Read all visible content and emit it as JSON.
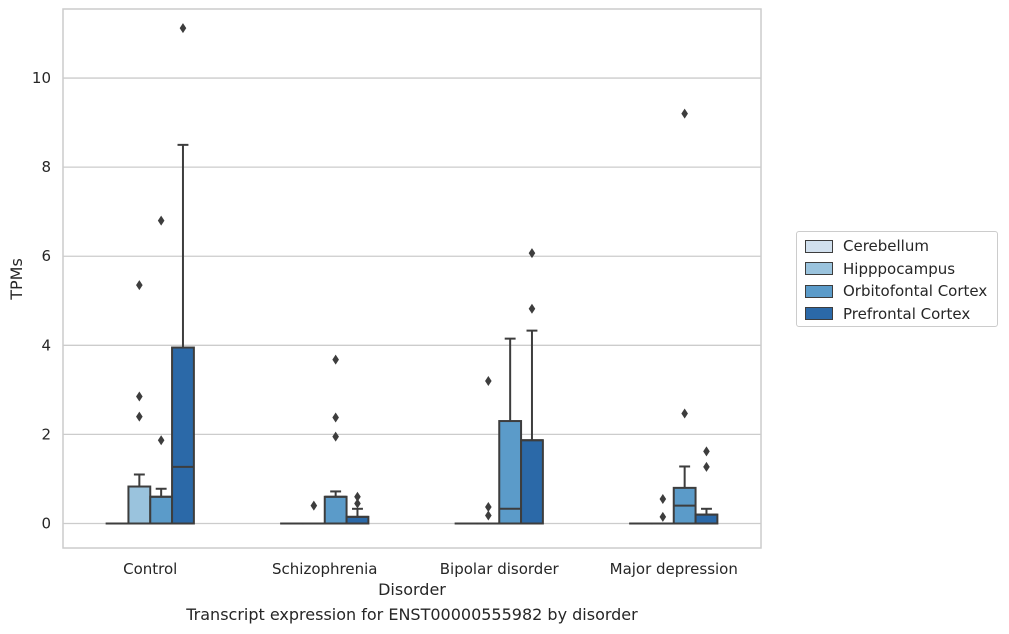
{
  "chart_data": {
    "type": "box",
    "xlabel": "Disorder",
    "ylabel": "TPMs",
    "ylim": [
      -0.55,
      11.55
    ],
    "yticks": [
      0,
      2,
      4,
      6,
      8,
      10
    ],
    "grid": "horizontal",
    "legend_position": "right",
    "categories": [
      "Control",
      "Schizophrenia",
      "Bipolar disorder",
      "Major depression"
    ],
    "series": [
      {
        "name": "Cerebellum",
        "color": "#d1e0ee",
        "boxes": [
          {
            "q1": 0,
            "median": 0,
            "q3": 0,
            "whisker_low": 0,
            "whisker_high": 0,
            "outliers": []
          },
          {
            "q1": 0,
            "median": 0,
            "q3": 0,
            "whisker_low": 0,
            "whisker_high": 0,
            "outliers": []
          },
          {
            "q1": 0,
            "median": 0,
            "q3": 0,
            "whisker_low": 0,
            "whisker_high": 0,
            "outliers": []
          },
          {
            "q1": 0,
            "median": 0,
            "q3": 0,
            "whisker_low": 0,
            "whisker_high": 0,
            "outliers": []
          }
        ]
      },
      {
        "name": "Hipppocampus",
        "color": "#9ac3dd",
        "boxes": [
          {
            "q1": 0,
            "median": 0,
            "q3": 0.83,
            "whisker_low": 0,
            "whisker_high": 1.1,
            "outliers": [
              2.4,
              2.85,
              5.35
            ]
          },
          {
            "q1": 0,
            "median": 0,
            "q3": 0,
            "whisker_low": 0,
            "whisker_high": 0,
            "outliers": [
              0.4
            ]
          },
          {
            "q1": 0,
            "median": 0,
            "q3": 0,
            "whisker_low": 0,
            "whisker_high": 0,
            "outliers": [
              0.18,
              0.37,
              3.2
            ]
          },
          {
            "q1": 0,
            "median": 0,
            "q3": 0,
            "whisker_low": 0,
            "whisker_high": 0,
            "outliers": [
              0.15,
              0.55
            ]
          }
        ]
      },
      {
        "name": "Orbitofontal Cortex",
        "color": "#5b9bc9",
        "boxes": [
          {
            "q1": 0,
            "median": 0.6,
            "q3": 0.6,
            "whisker_low": 0,
            "whisker_high": 0.78,
            "outliers": [
              1.87,
              6.8
            ]
          },
          {
            "q1": 0,
            "median": 0.6,
            "q3": 0.6,
            "whisker_low": 0,
            "whisker_high": 0.72,
            "outliers": [
              1.95,
              2.38,
              3.68
            ]
          },
          {
            "q1": 0,
            "median": 0.33,
            "q3": 2.3,
            "whisker_low": 0,
            "whisker_high": 4.15,
            "outliers": []
          },
          {
            "q1": 0,
            "median": 0.4,
            "q3": 0.8,
            "whisker_low": 0,
            "whisker_high": 1.28,
            "outliers": [
              2.47,
              9.2
            ]
          }
        ]
      },
      {
        "name": "Prefrontal Cortex",
        "color": "#2b69a8",
        "boxes": [
          {
            "q1": 0,
            "median": 1.27,
            "q3": 3.95,
            "whisker_low": 0,
            "whisker_high": 8.5,
            "outliers": [
              11.12
            ]
          },
          {
            "q1": 0,
            "median": 0.15,
            "q3": 0.15,
            "whisker_low": 0,
            "whisker_high": 0.33,
            "outliers": [
              0.45,
              0.6
            ]
          },
          {
            "q1": 0,
            "median": 1.87,
            "q3": 1.87,
            "whisker_low": 0,
            "whisker_high": 4.33,
            "outliers": [
              4.82,
              6.07
            ]
          },
          {
            "q1": 0,
            "median": 0.2,
            "q3": 0.2,
            "whisker_low": 0,
            "whisker_high": 0.33,
            "outliers": [
              1.27,
              1.62
            ]
          }
        ]
      }
    ]
  },
  "caption": "Transcript expression for ENST00000555982 by disorder"
}
